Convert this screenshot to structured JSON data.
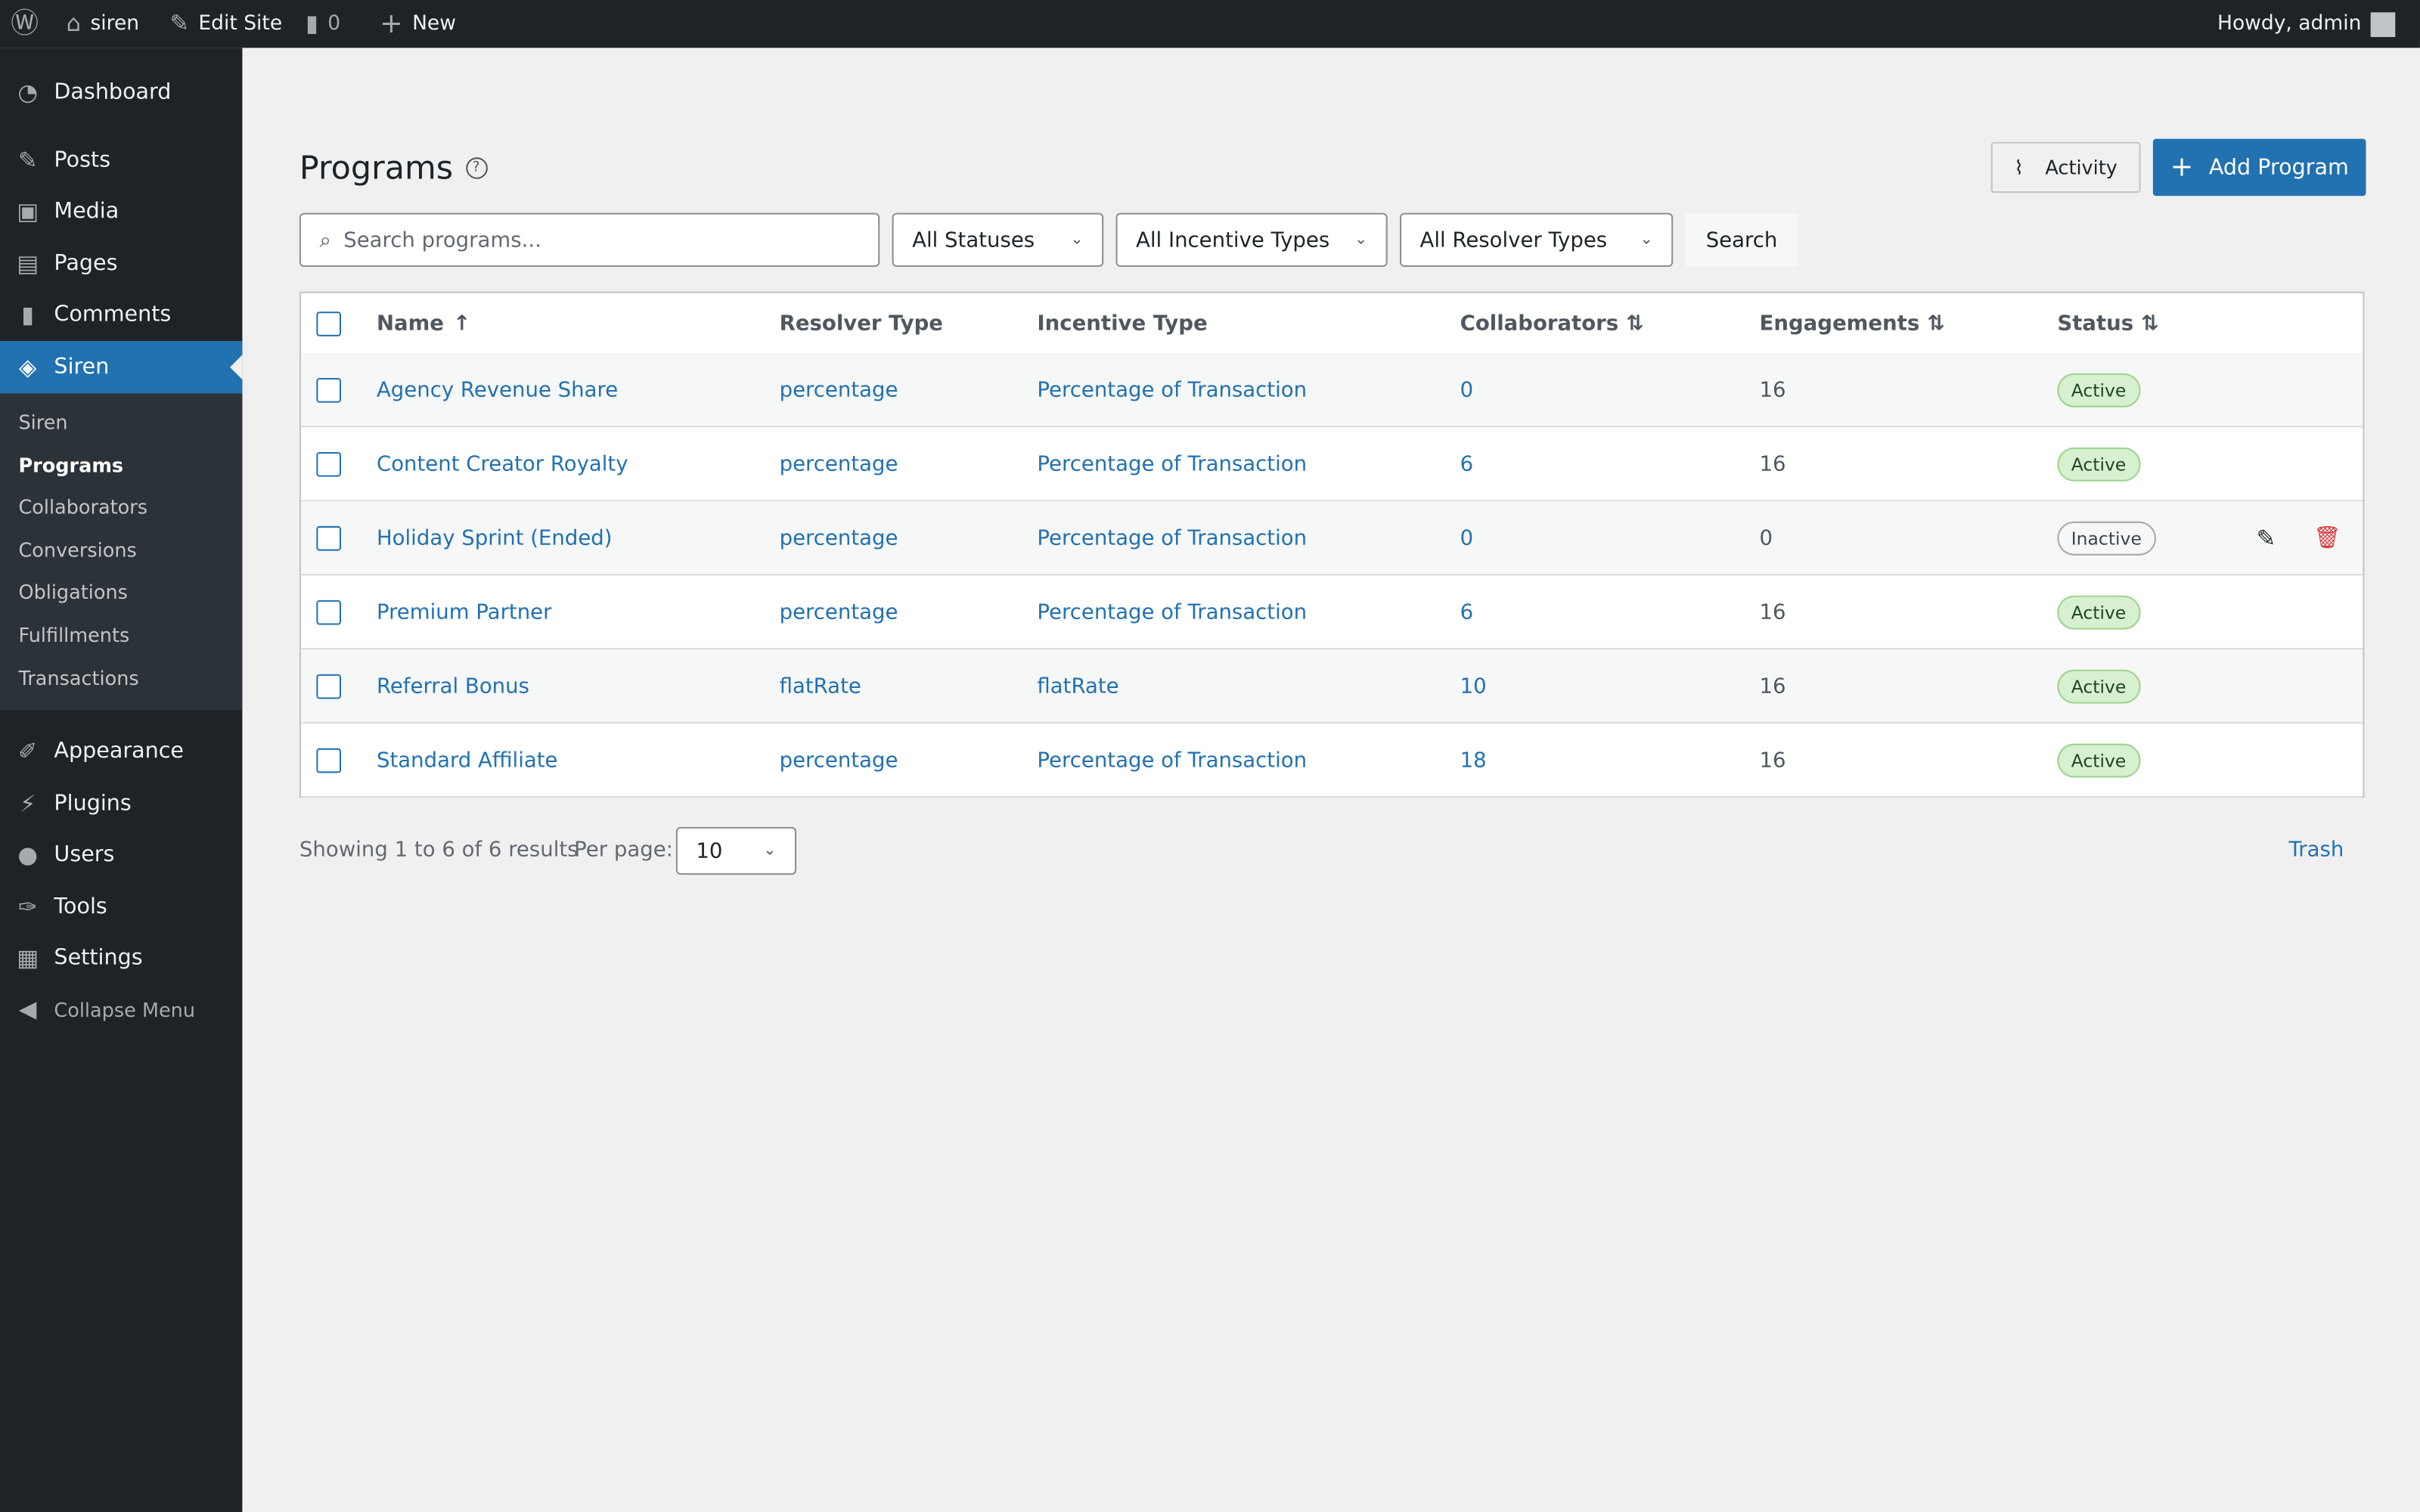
{
  "adminbar": {
    "site": "siren",
    "edit_site": "Edit Site",
    "comments": "0",
    "new": "New",
    "howdy": "Howdy, admin"
  },
  "sidebar": {
    "items": [
      {
        "label": "Dashboard",
        "icon": "dashboard-icon"
      },
      {
        "label": "Posts",
        "icon": "pin-icon"
      },
      {
        "label": "Media",
        "icon": "media-icon"
      },
      {
        "label": "Pages",
        "icon": "pages-icon"
      },
      {
        "label": "Comments",
        "icon": "comment-icon"
      },
      {
        "label": "Siren",
        "icon": "siren-icon"
      },
      {
        "label": "Appearance",
        "icon": "brush-icon"
      },
      {
        "label": "Plugins",
        "icon": "plug-icon"
      },
      {
        "label": "Users",
        "icon": "user-icon"
      },
      {
        "label": "Tools",
        "icon": "wrench-icon"
      },
      {
        "label": "Settings",
        "icon": "settings-icon"
      },
      {
        "label": "Collapse Menu",
        "icon": "collapse-icon"
      }
    ],
    "submenu": [
      "Siren",
      "Programs",
      "Collaborators",
      "Conversions",
      "Obligations",
      "Fulfillments",
      "Transactions"
    ],
    "current_submenu": "Programs"
  },
  "page": {
    "title": "Programs",
    "activity": "Activity",
    "add": "Add Program"
  },
  "filters": {
    "search_placeholder": "Search programs...",
    "status": "All Statuses",
    "incentive": "All Incentive Types",
    "resolver": "All Resolver Types",
    "search_button": "Search"
  },
  "table": {
    "headers": [
      "Name",
      "Resolver Type",
      "Incentive Type",
      "Collaborators",
      "Engagements",
      "Status"
    ],
    "rows": [
      {
        "name": "Agency Revenue Share",
        "resolver": "percentage",
        "incentive": "Percentage of Transaction",
        "collaborators": "0",
        "engagements": "16",
        "status": "Active"
      },
      {
        "name": "Content Creator Royalty",
        "resolver": "percentage",
        "incentive": "Percentage of Transaction",
        "collaborators": "6",
        "engagements": "16",
        "status": "Active"
      },
      {
        "name": "Holiday Sprint (Ended)",
        "resolver": "percentage",
        "incentive": "Percentage of Transaction",
        "collaborators": "0",
        "engagements": "0",
        "status": "Inactive"
      },
      {
        "name": "Premium Partner",
        "resolver": "percentage",
        "incentive": "Percentage of Transaction",
        "collaborators": "6",
        "engagements": "16",
        "status": "Active"
      },
      {
        "name": "Referral Bonus",
        "resolver": "flatRate",
        "incentive": "flatRate",
        "collaborators": "10",
        "engagements": "16",
        "status": "Active"
      },
      {
        "name": "Standard Affiliate",
        "resolver": "percentage",
        "incentive": "Percentage of Transaction",
        "collaborators": "18",
        "engagements": "16",
        "status": "Active"
      }
    ]
  },
  "footer": {
    "showing": "Showing 1 to 6 of 6 results",
    "per_page_label": "Per page:",
    "per_page": "10",
    "trash": "Trash"
  },
  "colors": {
    "accent": "#2271b1",
    "adminbar": "#1d2327",
    "delete": "#d63638"
  }
}
